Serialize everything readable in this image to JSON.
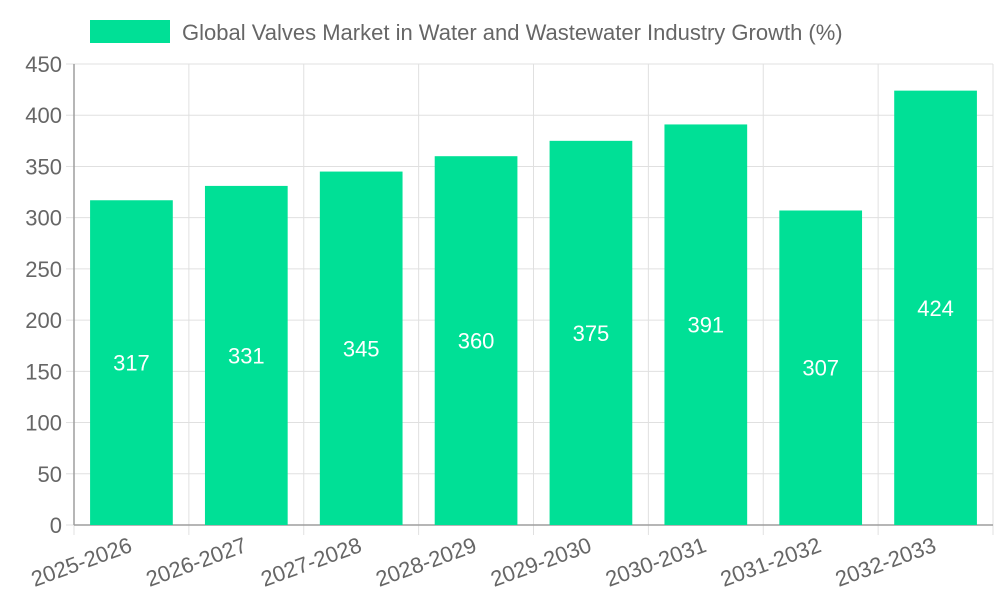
{
  "legend": {
    "label": "Global Valves Market in Water and Wastewater Industry Growth (%)",
    "swatch_color": "#00E096"
  },
  "chart_data": {
    "type": "bar",
    "categories": [
      "2025-2026",
      "2026-2027",
      "2027-2028",
      "2028-2029",
      "2029-2030",
      "2030-2031",
      "2031-2032",
      "2032-2033"
    ],
    "series": [
      {
        "name": "Global Valves Market in Water and Wastewater Industry Growth (%)",
        "values": [
          317,
          331,
          345,
          360,
          375,
          391,
          307,
          424
        ],
        "color": "#00E096"
      }
    ],
    "title": "",
    "xlabel": "",
    "ylabel": "",
    "ylim": [
      0,
      450
    ],
    "yticks": [
      0,
      50,
      100,
      150,
      200,
      250,
      300,
      350,
      400,
      450
    ],
    "grid": true,
    "legend_position": "top",
    "data_labels": true,
    "colors": {
      "grid": "#e0e0e0",
      "axis": "#9e9e9e",
      "text": "#666666",
      "label": "#ffffff"
    }
  }
}
